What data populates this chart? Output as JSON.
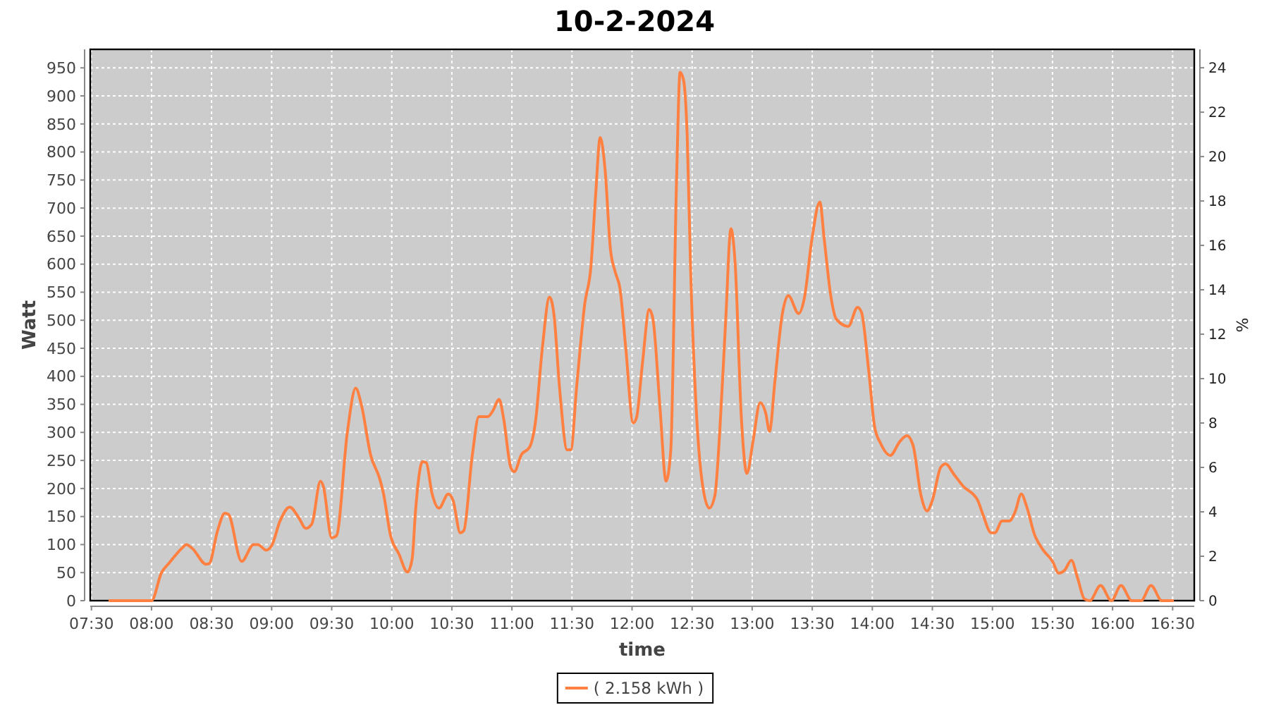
{
  "chart_data": {
    "type": "line",
    "title": "10-2-2024",
    "xlabel": "time",
    "ylabel": "Watt",
    "y2label": "%",
    "x": [
      7.653,
      7.93,
      8.0,
      8.083,
      8.15,
      8.26,
      8.29,
      8.34,
      8.455,
      8.48,
      8.55,
      8.61,
      8.64,
      8.75,
      8.85,
      8.885,
      8.955,
      9.0,
      9.07,
      9.15,
      9.22,
      9.285,
      9.335,
      9.406,
      9.43,
      9.5,
      9.54,
      9.63,
      9.7,
      9.745,
      9.825,
      9.9,
      9.93,
      9.99,
      10.06,
      10.13,
      10.17,
      10.197,
      10.256,
      10.287,
      10.334,
      10.393,
      10.47,
      10.51,
      10.57,
      10.6,
      10.67,
      10.725,
      10.8,
      10.84,
      10.894,
      10.93,
      10.99,
      11.02,
      11.078,
      11.148,
      11.195,
      11.254,
      11.313,
      11.35,
      11.398,
      11.46,
      11.49,
      11.54,
      11.606,
      11.657,
      11.696,
      11.735,
      11.775,
      11.82,
      11.86,
      11.9,
      11.947,
      12.01,
      12.037,
      12.088,
      12.143,
      12.174,
      12.233,
      12.283,
      12.322,
      12.37,
      12.4,
      12.428,
      12.459,
      12.487,
      12.534,
      12.585,
      12.643,
      12.69,
      12.73,
      12.78,
      12.823,
      12.858,
      12.91,
      12.956,
      13.007,
      13.066,
      13.113,
      13.144,
      13.19,
      13.25,
      13.3,
      13.387,
      13.434,
      13.497,
      13.563,
      13.6,
      13.654,
      13.7,
      13.8,
      13.877,
      13.91,
      13.97,
      14.02,
      14.07,
      14.15,
      14.23,
      14.288,
      14.34,
      14.405,
      14.456,
      14.5,
      14.57,
      14.61,
      14.68,
      14.757,
      14.877,
      14.92,
      14.99,
      15.02,
      15.08,
      15.14,
      15.188,
      15.24,
      15.286,
      15.35,
      15.42,
      15.5,
      15.552,
      15.6,
      15.657,
      15.708,
      15.766,
      15.81,
      15.9,
      15.99,
      16.07,
      16.16,
      16.237,
      16.32,
      16.41,
      16.5
    ],
    "series": [
      {
        "name": "( 2.158 kWh )",
        "color": "#ff8040",
        "values": [
          0,
          0,
          0,
          50,
          68,
          95,
          100,
          93,
          65,
          66,
          125,
          156,
          154,
          70,
          100,
          100,
          90,
          98,
          142,
          167,
          150,
          129,
          137,
          213,
          204,
          112,
          116,
          300,
          379,
          351,
          259,
          217,
          192,
          116,
          83,
          51,
          75,
          158,
          248,
          246,
          192,
          165,
          190,
          179,
          121,
          125,
          259,
          328,
          328,
          338,
          359,
          326,
          238,
          230,
          260,
          274,
          317,
          452,
          541,
          510,
          376,
          269,
          269,
          384,
          529,
          594,
          720,
          826,
          770,
          627,
          586,
          556,
          452,
          317,
          326,
          426,
          519,
          502,
          343,
          213,
          267,
          745,
          942,
          929,
          829,
          594,
          343,
          209,
          165,
          188,
          301,
          502,
          663,
          602,
          326,
          227,
          284,
          353,
          334,
          302,
          393,
          510,
          544,
          512,
          539,
          644,
          711,
          644,
          544,
          502,
          489,
          523,
          514,
          410,
          309,
          280,
          259,
          284,
          294,
          276,
          188,
          160,
          179,
          238,
          244,
          225,
          204,
          179,
          154,
          121,
          121,
          142,
          142,
          158,
          190,
          167,
          118,
          91,
          70,
          49,
          54,
          72,
          41,
          3,
          0,
          27,
          0,
          27,
          0,
          0,
          27,
          0,
          0
        ]
      }
    ],
    "xlim": [
      7.49,
      16.68
    ],
    "ylim": [
      0,
      983
    ],
    "y2lim": [
      0,
      24.83
    ],
    "xticks": [
      {
        "value": 7.5,
        "label": "07:30"
      },
      {
        "value": 8,
        "label": "08:00"
      },
      {
        "value": 8.5,
        "label": "08:30"
      },
      {
        "value": 9,
        "label": "09:00"
      },
      {
        "value": 9.5,
        "label": "09:30"
      },
      {
        "value": 10,
        "label": "10:00"
      },
      {
        "value": 10.5,
        "label": "10:30"
      },
      {
        "value": 11,
        "label": "11:00"
      },
      {
        "value": 11.5,
        "label": "11:30"
      },
      {
        "value": 12,
        "label": "12:00"
      },
      {
        "value": 12.5,
        "label": "12:30"
      },
      {
        "value": 13,
        "label": "13:00"
      },
      {
        "value": 13.5,
        "label": "13:30"
      },
      {
        "value": 14,
        "label": "14:00"
      },
      {
        "value": 14.5,
        "label": "14:30"
      },
      {
        "value": 15,
        "label": "15:00"
      },
      {
        "value": 15.5,
        "label": "15:30"
      },
      {
        "value": 16,
        "label": "16:00"
      },
      {
        "value": 16.5,
        "label": "16:30"
      }
    ],
    "yticks": [
      0,
      50,
      100,
      150,
      200,
      250,
      300,
      350,
      400,
      450,
      500,
      550,
      600,
      650,
      700,
      750,
      800,
      850,
      900,
      950
    ],
    "y2ticks": [
      0,
      2,
      4,
      6,
      8,
      10,
      12,
      14,
      16,
      18,
      20,
      22,
      24
    ],
    "grid": true,
    "legend": "bottom"
  }
}
